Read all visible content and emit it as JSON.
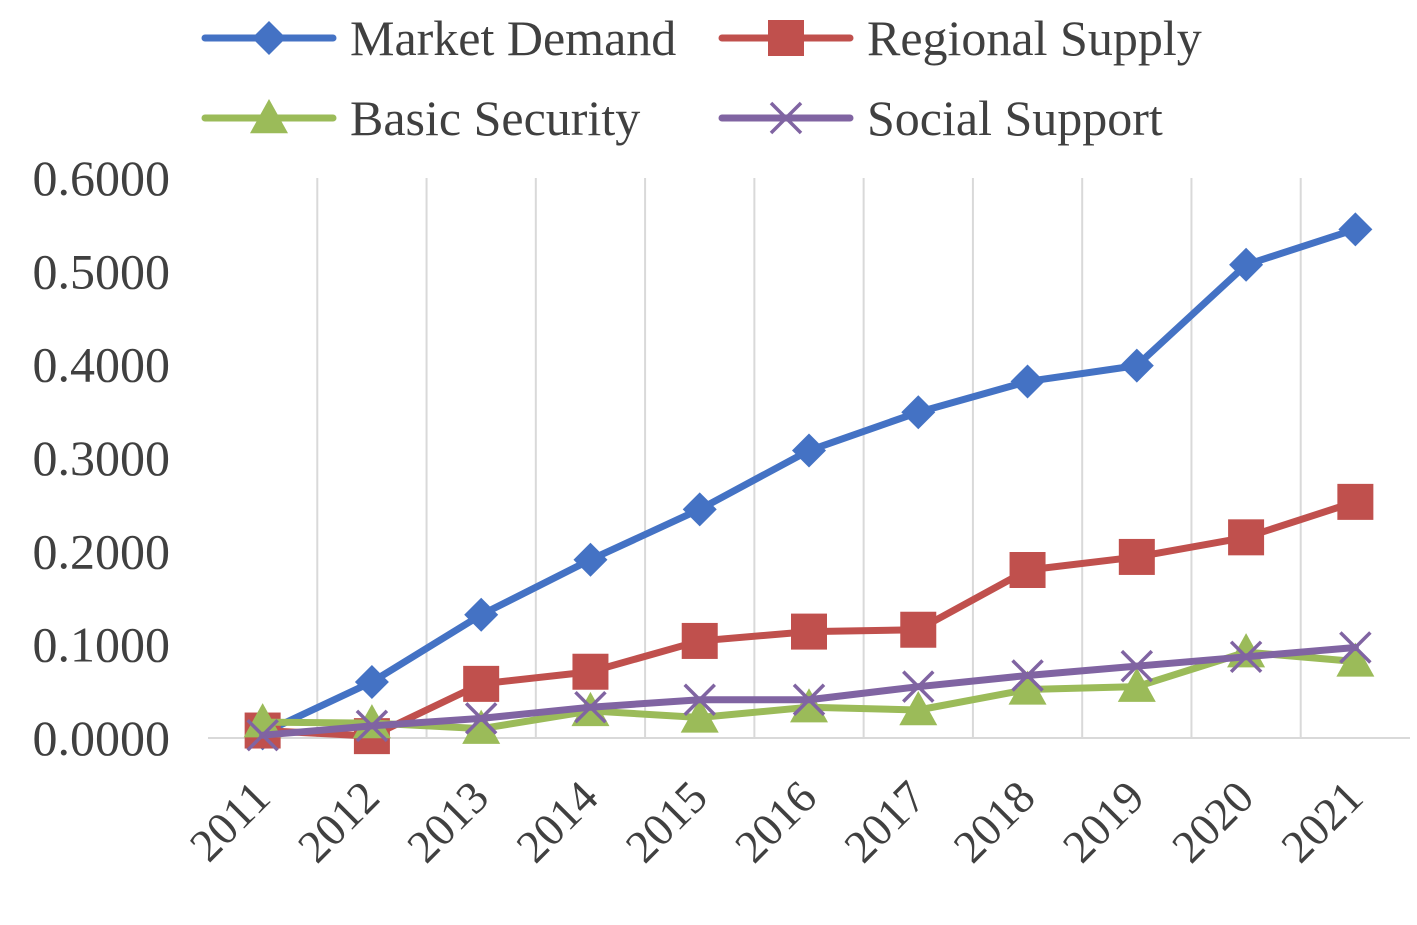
{
  "chart_data": {
    "type": "line",
    "title": "",
    "xlabel": "",
    "ylabel": "",
    "categories": [
      "2011",
      "2012",
      "2013",
      "2014",
      "2015",
      "2016",
      "2017",
      "2018",
      "2019",
      "2020",
      "2021"
    ],
    "ylim": [
      0,
      0.6
    ],
    "yticks": [
      "0.0000",
      "0.1000",
      "0.2000",
      "0.3000",
      "0.4000",
      "0.5000",
      "0.6000"
    ],
    "grid": "vertical",
    "legend_position": "top",
    "series": [
      {
        "name": "Market Demand",
        "color": "#4472C4",
        "marker": "diamond",
        "values": [
          0.005,
          0.06,
          0.132,
          0.191,
          0.245,
          0.308,
          0.349,
          0.382,
          0.399,
          0.507,
          0.545
        ]
      },
      {
        "name": "Regional Supply",
        "color": "#C0504D",
        "marker": "square",
        "values": [
          0.008,
          0.002,
          0.058,
          0.071,
          0.104,
          0.114,
          0.116,
          0.18,
          0.194,
          0.215,
          0.253
        ]
      },
      {
        "name": "Basic Security",
        "color": "#9BBB59",
        "marker": "triangle",
        "values": [
          0.017,
          0.016,
          0.01,
          0.029,
          0.022,
          0.033,
          0.03,
          0.052,
          0.055,
          0.092,
          0.082
        ]
      },
      {
        "name": "Social Support",
        "color": "#8064A2",
        "marker": "x",
        "values": [
          0.003,
          0.013,
          0.021,
          0.033,
          0.041,
          0.041,
          0.055,
          0.067,
          0.077,
          0.087,
          0.097
        ]
      }
    ]
  }
}
